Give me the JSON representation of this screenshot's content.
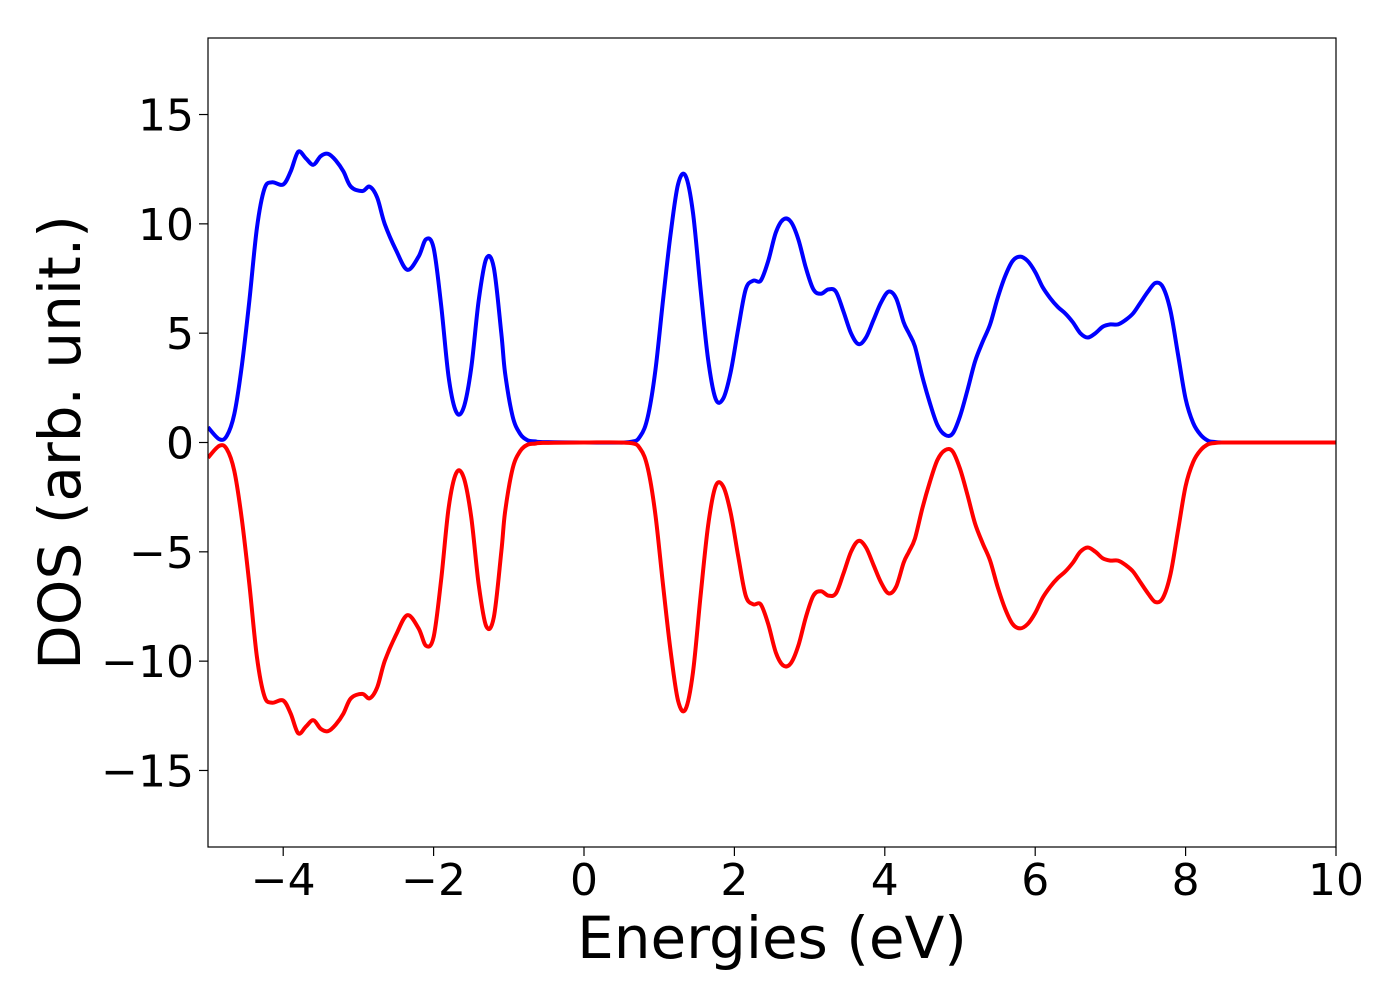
{
  "chart_data": {
    "type": "line",
    "title": "",
    "xlabel": "Energies (eV)",
    "ylabel": "DOS (arb. unit.)",
    "xlim": [
      -5,
      10
    ],
    "ylim": [
      -18.5,
      18.5
    ],
    "xticks": [
      -4,
      -2,
      0,
      2,
      4,
      6,
      8,
      10
    ],
    "xtick_labels": [
      "−4",
      "−2",
      "0",
      "2",
      "4",
      "6",
      "8",
      "10"
    ],
    "yticks": [
      15,
      10,
      5,
      0,
      -5,
      -10,
      -15
    ],
    "ytick_labels": [
      "15",
      "10",
      "5",
      "0",
      "−5",
      "−10",
      "−15"
    ],
    "grid": false,
    "legend": "none",
    "series": [
      {
        "color": "#0000ff",
        "x": [
          -5.0,
          -4.85,
          -4.75,
          -4.65,
          -4.55,
          -4.45,
          -4.35,
          -4.25,
          -4.15,
          -4.0,
          -3.9,
          -3.8,
          -3.7,
          -3.6,
          -3.5,
          -3.4,
          -3.3,
          -3.2,
          -3.1,
          -2.95,
          -2.85,
          -2.75,
          -2.65,
          -2.5,
          -2.35,
          -2.2,
          -2.1,
          -2.0,
          -1.9,
          -1.8,
          -1.7,
          -1.6,
          -1.5,
          -1.4,
          -1.3,
          -1.2,
          -1.1,
          -1.05,
          -0.95,
          -0.85,
          -0.75,
          -0.65,
          -0.55,
          0.0,
          0.6,
          0.75,
          0.85,
          0.95,
          1.05,
          1.15,
          1.25,
          1.35,
          1.45,
          1.55,
          1.65,
          1.75,
          1.85,
          1.95,
          2.05,
          2.15,
          2.25,
          2.35,
          2.45,
          2.55,
          2.65,
          2.75,
          2.85,
          2.95,
          3.05,
          3.15,
          3.25,
          3.35,
          3.45,
          3.55,
          3.65,
          3.75,
          3.85,
          3.95,
          4.05,
          4.15,
          4.25,
          4.32,
          4.4,
          4.5,
          4.6,
          4.7,
          4.8,
          4.9,
          5.0,
          5.1,
          5.2,
          5.3,
          5.4,
          5.5,
          5.6,
          5.7,
          5.8,
          5.9,
          6.0,
          6.1,
          6.2,
          6.3,
          6.4,
          6.5,
          6.6,
          6.7,
          6.8,
          6.9,
          7.0,
          7.1,
          7.2,
          7.3,
          7.4,
          7.5,
          7.6,
          7.7,
          7.8,
          7.9,
          8.0,
          8.1,
          8.2,
          8.3,
          8.4,
          8.5,
          8.6,
          8.7,
          8.8,
          10.0
        ],
        "y": [
          0.7,
          0.15,
          0.3,
          1.3,
          3.5,
          6.5,
          9.8,
          11.6,
          11.9,
          11.8,
          12.4,
          13.3,
          13.0,
          12.7,
          13.1,
          13.2,
          12.9,
          12.4,
          11.7,
          11.5,
          11.7,
          11.2,
          10.0,
          8.8,
          7.9,
          8.5,
          9.3,
          8.9,
          6.3,
          3.0,
          1.4,
          1.6,
          3.4,
          6.5,
          8.4,
          8.0,
          5.0,
          3.2,
          1.2,
          0.4,
          0.1,
          0.05,
          0.02,
          0.0,
          0.02,
          0.3,
          1.2,
          3.3,
          6.5,
          9.5,
          11.8,
          12.2,
          10.5,
          7.0,
          3.8,
          2.0,
          2.0,
          3.2,
          5.2,
          7.0,
          7.4,
          7.4,
          8.3,
          9.6,
          10.2,
          10.1,
          9.3,
          8.0,
          7.0,
          6.8,
          7.0,
          6.9,
          6.0,
          5.0,
          4.5,
          4.8,
          5.6,
          6.4,
          6.9,
          6.6,
          5.5,
          5.0,
          4.4,
          3.0,
          1.8,
          0.8,
          0.35,
          0.4,
          1.2,
          2.4,
          3.7,
          4.6,
          5.4,
          6.6,
          7.6,
          8.3,
          8.5,
          8.3,
          7.8,
          7.1,
          6.6,
          6.2,
          5.9,
          5.5,
          5.0,
          4.8,
          5.0,
          5.3,
          5.4,
          5.4,
          5.6,
          5.9,
          6.4,
          6.9,
          7.3,
          7.1,
          6.0,
          4.0,
          2.0,
          0.9,
          0.35,
          0.08,
          0.02,
          0.0,
          0.0,
          0.0,
          0.0,
          0.0
        ]
      },
      {
        "color": "#ff0000",
        "x": [
          -5.0,
          -4.85,
          -4.75,
          -4.65,
          -4.55,
          -4.45,
          -4.35,
          -4.25,
          -4.15,
          -4.0,
          -3.9,
          -3.8,
          -3.7,
          -3.6,
          -3.5,
          -3.4,
          -3.3,
          -3.2,
          -3.1,
          -2.95,
          -2.85,
          -2.75,
          -2.65,
          -2.5,
          -2.35,
          -2.2,
          -2.1,
          -2.0,
          -1.9,
          -1.8,
          -1.7,
          -1.6,
          -1.5,
          -1.4,
          -1.3,
          -1.2,
          -1.1,
          -1.05,
          -0.95,
          -0.85,
          -0.75,
          -0.65,
          -0.55,
          0.0,
          0.6,
          0.75,
          0.85,
          0.95,
          1.05,
          1.15,
          1.25,
          1.35,
          1.45,
          1.55,
          1.65,
          1.75,
          1.85,
          1.95,
          2.05,
          2.15,
          2.25,
          2.35,
          2.45,
          2.55,
          2.65,
          2.75,
          2.85,
          2.95,
          3.05,
          3.15,
          3.25,
          3.35,
          3.45,
          3.55,
          3.65,
          3.75,
          3.85,
          3.95,
          4.05,
          4.15,
          4.25,
          4.32,
          4.4,
          4.5,
          4.6,
          4.7,
          4.8,
          4.9,
          5.0,
          5.1,
          5.2,
          5.3,
          5.4,
          5.5,
          5.6,
          5.7,
          5.8,
          5.9,
          6.0,
          6.1,
          6.2,
          6.3,
          6.4,
          6.5,
          6.6,
          6.7,
          6.8,
          6.9,
          7.0,
          7.1,
          7.2,
          7.3,
          7.4,
          7.5,
          7.6,
          7.7,
          7.8,
          7.9,
          8.0,
          8.1,
          8.2,
          8.3,
          8.4,
          8.5,
          8.6,
          8.7,
          8.8,
          10.0
        ],
        "y": [
          -0.7,
          -0.15,
          -0.3,
          -1.3,
          -3.5,
          -6.5,
          -9.8,
          -11.6,
          -11.9,
          -11.8,
          -12.4,
          -13.3,
          -13.0,
          -12.7,
          -13.1,
          -13.2,
          -12.9,
          -12.4,
          -11.7,
          -11.5,
          -11.7,
          -11.2,
          -10.0,
          -8.8,
          -7.9,
          -8.5,
          -9.3,
          -8.9,
          -6.3,
          -3.0,
          -1.4,
          -1.6,
          -3.4,
          -6.5,
          -8.4,
          -8.0,
          -5.0,
          -3.2,
          -1.2,
          -0.4,
          -0.1,
          -0.05,
          -0.02,
          0.0,
          -0.02,
          -0.3,
          -1.2,
          -3.3,
          -6.5,
          -9.5,
          -11.8,
          -12.2,
          -10.5,
          -7.0,
          -3.8,
          -2.0,
          -2.0,
          -3.2,
          -5.2,
          -7.0,
          -7.4,
          -7.4,
          -8.3,
          -9.6,
          -10.2,
          -10.1,
          -9.3,
          -8.0,
          -7.0,
          -6.8,
          -7.0,
          -6.9,
          -6.0,
          -5.0,
          -4.5,
          -4.8,
          -5.6,
          -6.4,
          -6.9,
          -6.6,
          -5.5,
          -5.0,
          -4.4,
          -3.0,
          -1.8,
          -0.8,
          -0.35,
          -0.4,
          -1.2,
          -2.4,
          -3.7,
          -4.6,
          -5.4,
          -6.6,
          -7.6,
          -8.3,
          -8.5,
          -8.3,
          -7.8,
          -7.1,
          -6.6,
          -6.2,
          -5.9,
          -5.5,
          -5.0,
          -4.8,
          -5.0,
          -5.3,
          -5.4,
          -5.4,
          -5.6,
          -5.9,
          -6.4,
          -6.9,
          -7.3,
          -7.1,
          -6.0,
          -4.0,
          -2.0,
          -0.9,
          -0.35,
          -0.08,
          -0.02,
          0.0,
          0.0,
          0.0,
          0.0,
          0.0
        ]
      }
    ]
  }
}
